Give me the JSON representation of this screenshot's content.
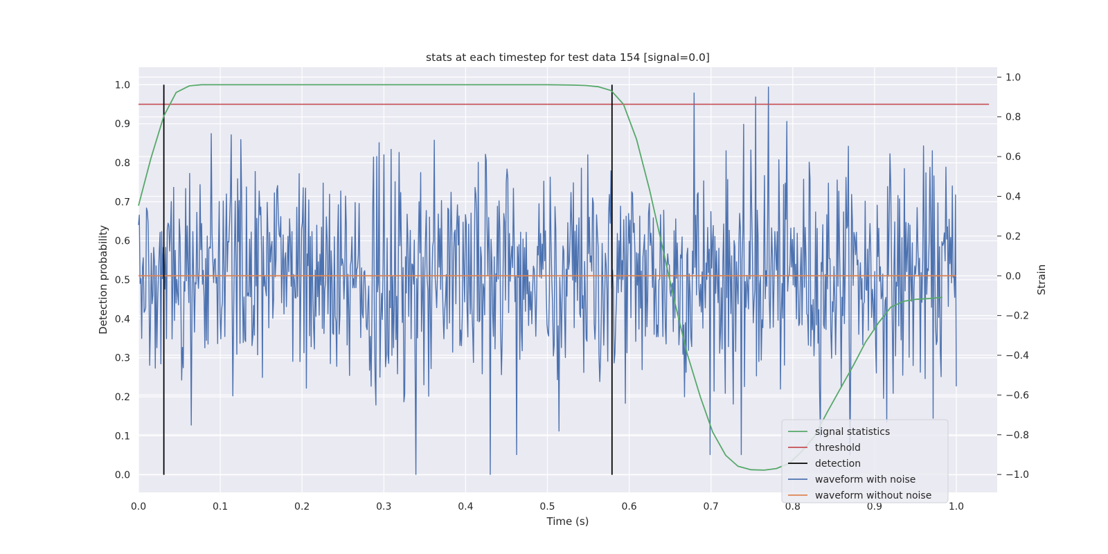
{
  "chart_data": {
    "type": "line",
    "title": "stats at each timestep for test data 154 [signal=0.0]",
    "xlabel": "Time (s)",
    "ylabel_left": "Detection probability",
    "ylabel_right": "Strain",
    "xlim": [
      0.0,
      1.05
    ],
    "ylim_left": [
      -0.045,
      1.045
    ],
    "ylim_right": [
      -1.09,
      1.05
    ],
    "x_ticks": [
      "0.0",
      "0.1",
      "0.2",
      "0.3",
      "0.4",
      "0.5",
      "0.6",
      "0.7",
      "0.8",
      "0.9",
      "1.0"
    ],
    "y_left_ticks": [
      "0.0",
      "0.1",
      "0.2",
      "0.3",
      "0.4",
      "0.5",
      "0.6",
      "0.7",
      "0.8",
      "0.9",
      "1.0"
    ],
    "y_right_ticks": [
      "−1.0",
      "−0.8",
      "−0.6",
      "−0.4",
      "−0.2",
      "0.0",
      "0.2",
      "0.4",
      "0.6",
      "0.8",
      "1.0"
    ],
    "grid": true,
    "legend_position": "lower-right",
    "colors": {
      "signal_statistics": "#55a868",
      "threshold": "#c44e52",
      "detection": "#000000",
      "waveform_with_noise": "#4c72b0",
      "waveform_without_noise": "#dd8452",
      "background": "#eaeaf2",
      "grid": "#ffffff"
    },
    "series": [
      {
        "name": "signal statistics",
        "axis": "left",
        "x": [
          0.0,
          0.015,
          0.031,
          0.046,
          0.062,
          0.077,
          0.093,
          0.2,
          0.3,
          0.4,
          0.5,
          0.531,
          0.547,
          0.562,
          0.578,
          0.593,
          0.609,
          0.625,
          0.64,
          0.656,
          0.671,
          0.687,
          0.702,
          0.718,
          0.733,
          0.749,
          0.765,
          0.78,
          0.796,
          0.811,
          0.827,
          0.842,
          0.858,
          0.874,
          0.889,
          0.905,
          0.92,
          0.936,
          0.951,
          0.967,
          0.983
        ],
        "y": [
          0.69,
          0.81,
          0.92,
          0.98,
          0.997,
          1.0,
          1.0,
          1.0,
          1.0,
          1.0,
          1.0,
          0.999,
          0.998,
          0.995,
          0.985,
          0.95,
          0.86,
          0.73,
          0.59,
          0.44,
          0.31,
          0.2,
          0.11,
          0.05,
          0.022,
          0.013,
          0.012,
          0.016,
          0.03,
          0.06,
          0.1,
          0.16,
          0.22,
          0.28,
          0.34,
          0.39,
          0.43,
          0.445,
          0.45,
          0.452,
          0.455
        ]
      },
      {
        "name": "threshold",
        "axis": "left",
        "x": [
          0.0,
          1.04
        ],
        "y": [
          0.95,
          0.95
        ]
      },
      {
        "name": "detection",
        "axis": "left",
        "x": [
          0.031,
          0.579
        ],
        "y_range": [
          0.0,
          1.0
        ]
      },
      {
        "name": "waveform with noise",
        "axis": "right",
        "x_range": [
          0.0,
          1.0
        ],
        "n_points": 1024,
        "description": "dense zero-centered noise, amplitude mostly within ±0.4, peaks near ±1.0",
        "notable_extrema": [
          {
            "x": 0.339,
            "y": -1.0
          },
          {
            "x": 0.43,
            "y": -1.0
          },
          {
            "x": 0.679,
            "y": 0.92
          },
          {
            "x": 0.755,
            "y": 0.9
          },
          {
            "x": 0.77,
            "y": 0.95
          },
          {
            "x": 0.737,
            "y": -0.9
          }
        ]
      },
      {
        "name": "waveform without noise",
        "axis": "right",
        "x": [
          0.0,
          1.0
        ],
        "y": [
          0.0,
          0.0
        ]
      }
    ],
    "legend": [
      "signal statistics",
      "threshold",
      "detection",
      "waveform with noise",
      "waveform without noise"
    ]
  }
}
